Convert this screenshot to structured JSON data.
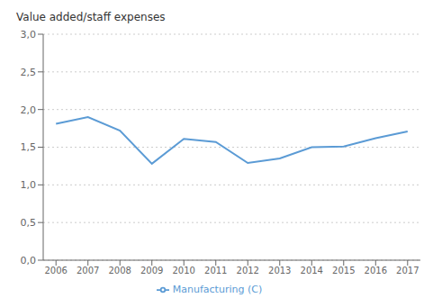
{
  "chart_data": {
    "type": "line",
    "ylabel": "Value added/staff expenses",
    "x": [
      2006,
      2007,
      2008,
      2009,
      2010,
      2011,
      2012,
      2013,
      2014,
      2015,
      2016,
      2017
    ],
    "series": [
      {
        "name": "Manufacturing (C)",
        "color": "#5b9bd5",
        "values": [
          1.81,
          1.9,
          1.72,
          1.28,
          1.61,
          1.57,
          1.29,
          1.35,
          1.5,
          1.51,
          1.62,
          1.71
        ]
      }
    ],
    "xlim": [
      2005.6,
      2017.4
    ],
    "xticks": [
      2006,
      2007,
      2008,
      2009,
      2010,
      2011,
      2012,
      2013,
      2014,
      2015,
      2016,
      2017
    ],
    "ylim": [
      0.0,
      3.0
    ],
    "yticks": [
      {
        "value": 0.0,
        "label": "0,0"
      },
      {
        "value": 0.5,
        "label": "0,5"
      },
      {
        "value": 1.0,
        "label": "1,0"
      },
      {
        "value": 1.5,
        "label": "1,5"
      },
      {
        "value": 2.0,
        "label": "2,0"
      },
      {
        "value": 2.5,
        "label": "2,5"
      },
      {
        "value": 3.0,
        "label": "3,0"
      }
    ],
    "grid": "y",
    "legend": "bottom"
  }
}
